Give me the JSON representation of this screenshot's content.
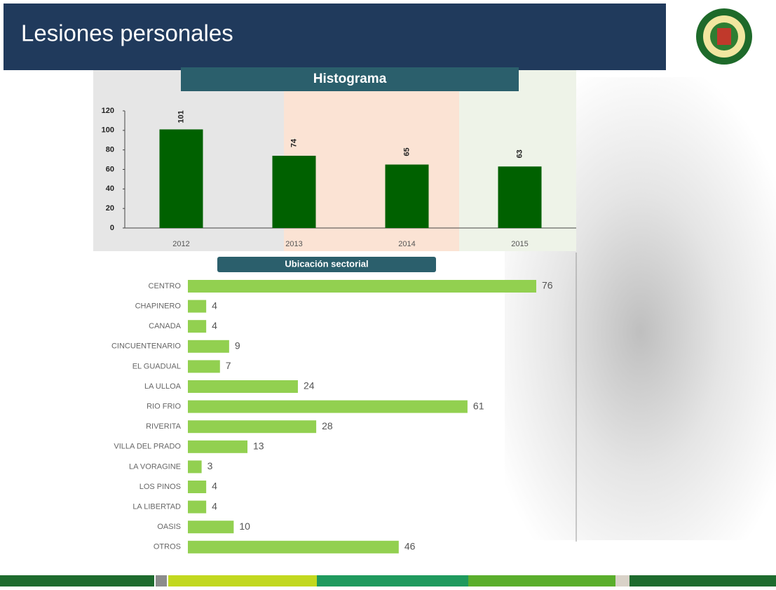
{
  "header": {
    "title": "Lesiones personales"
  },
  "chart_data": [
    {
      "type": "bar",
      "title": "Histograma",
      "categories": [
        "2012",
        "2013",
        "2014",
        "2015"
      ],
      "values": [
        101,
        74,
        65,
        63
      ],
      "color": "#006100",
      "ylim": [
        0,
        120
      ],
      "yticks": [
        0,
        20,
        40,
        60,
        80,
        100,
        120
      ]
    },
    {
      "type": "hbar",
      "title": "Ubicación sectorial",
      "categories": [
        "CENTRO",
        "CHAPINERO",
        "CANADA",
        "CINCUENTENARIO",
        "EL GUADUAL",
        "LA ULLOA",
        "RIO FRIO",
        "RIVERITA",
        "VILLA DEL PRADO",
        "LA VORAGINE",
        "LOS PINOS",
        "LA LIBERTAD",
        "OASIS",
        "OTROS"
      ],
      "values": [
        76,
        4,
        4,
        9,
        7,
        24,
        61,
        28,
        13,
        3,
        4,
        4,
        10,
        46
      ],
      "color": "#92d050"
    }
  ]
}
